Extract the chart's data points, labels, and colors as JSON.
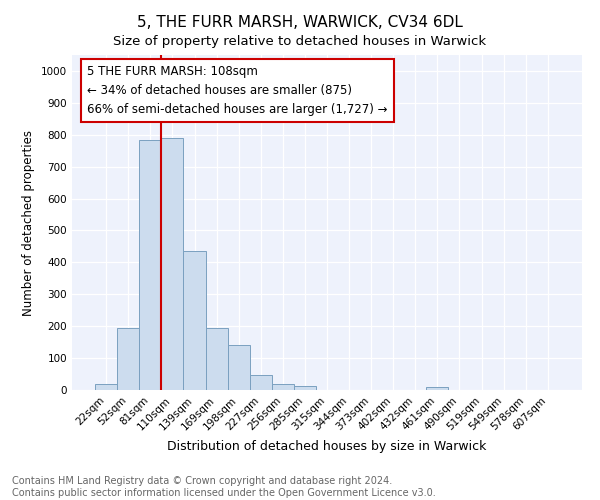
{
  "title1": "5, THE FURR MARSH, WARWICK, CV34 6DL",
  "title2": "Size of property relative to detached houses in Warwick",
  "xlabel": "Distribution of detached houses by size in Warwick",
  "ylabel": "Number of detached properties",
  "bar_labels": [
    "22sqm",
    "52sqm",
    "81sqm",
    "110sqm",
    "139sqm",
    "169sqm",
    "198sqm",
    "227sqm",
    "256sqm",
    "285sqm",
    "315sqm",
    "344sqm",
    "373sqm",
    "402sqm",
    "432sqm",
    "461sqm",
    "490sqm",
    "519sqm",
    "549sqm",
    "578sqm",
    "607sqm"
  ],
  "bar_values": [
    18,
    195,
    785,
    790,
    435,
    193,
    142,
    47,
    18,
    12,
    0,
    0,
    0,
    0,
    0,
    10,
    0,
    0,
    0,
    0,
    0
  ],
  "bar_color": "#ccdcee",
  "bar_edge_color": "#7aa0c0",
  "vline_color": "#cc0000",
  "annotation_text": "5 THE FURR MARSH: 108sqm\n← 34% of detached houses are smaller (875)\n66% of semi-detached houses are larger (1,727) →",
  "annotation_box_color": "#ffffff",
  "annotation_box_edge_color": "#cc0000",
  "ylim": [
    0,
    1050
  ],
  "yticks": [
    0,
    100,
    200,
    300,
    400,
    500,
    600,
    700,
    800,
    900,
    1000
  ],
  "bg_color": "#eef2fc",
  "footer_text": "Contains HM Land Registry data © Crown copyright and database right 2024.\nContains public sector information licensed under the Open Government Licence v3.0.",
  "title1_fontsize": 11,
  "title2_fontsize": 9.5,
  "annotation_fontsize": 8.5,
  "footer_fontsize": 7,
  "ylabel_fontsize": 8.5,
  "xlabel_fontsize": 9,
  "tick_fontsize": 7.5
}
